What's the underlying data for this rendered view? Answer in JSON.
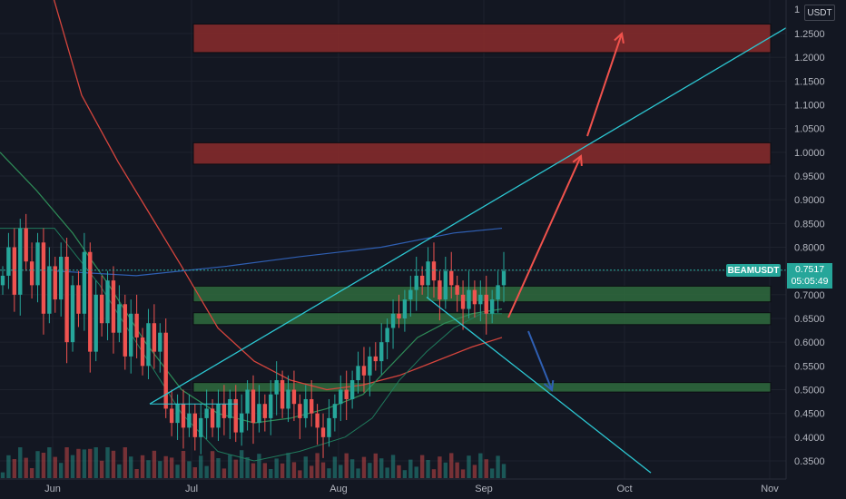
{
  "currency": "USDT",
  "ticker": "BEAMUSDT",
  "last_price": "0.7517",
  "countdown": "05:05:49",
  "colors": {
    "background": "#131722",
    "bull": "#26a69a",
    "bear": "#ef5350",
    "trendline": "#2cc7d2",
    "resistance_zone": "#8b2c2c",
    "support_zone": "#2f6b3d",
    "ma_fast": "#2e8b57",
    "ma_slow": "#d6453d",
    "ma_long": "#2f5fb3"
  },
  "chart_data": {
    "type": "candlestick",
    "y_ticks": [
      "1.2500",
      "1.2000",
      "1.1500",
      "1.1000",
      "1.0500",
      "1.0000",
      "0.9500",
      "0.9000",
      "0.8500",
      "0.8000",
      "0.7500",
      "0.7000",
      "0.6500",
      "0.6000",
      "0.5500",
      "0.5000",
      "0.4500",
      "0.4000",
      "0.3500"
    ],
    "y_top_label": "1",
    "x_ticks": [
      "Jun",
      "Jul",
      "Aug",
      "Sep",
      "Oct",
      "Nov"
    ],
    "ylim": [
      0.32,
      1.3
    ],
    "zones": [
      {
        "kind": "resistance",
        "low": 1.21,
        "high": 1.27
      },
      {
        "kind": "resistance",
        "low": 0.975,
        "high": 1.02
      },
      {
        "kind": "support",
        "low": 0.685,
        "high": 0.718
      },
      {
        "kind": "support",
        "low": 0.637,
        "high": 0.662
      },
      {
        "kind": "support",
        "low": 0.495,
        "high": 0.515
      }
    ],
    "candle_closes": [
      0.74,
      0.8,
      0.7,
      0.84,
      0.77,
      0.72,
      0.81,
      0.66,
      0.76,
      0.69,
      0.78,
      0.6,
      0.72,
      0.66,
      0.79,
      0.58,
      0.7,
      0.64,
      0.73,
      0.62,
      0.68,
      0.57,
      0.66,
      0.61,
      0.55,
      0.64,
      0.58,
      0.62,
      0.46,
      0.43,
      0.47,
      0.42,
      0.45,
      0.4,
      0.44,
      0.46,
      0.42,
      0.47,
      0.44,
      0.48,
      0.41,
      0.45,
      0.5,
      0.43,
      0.47,
      0.44,
      0.49,
      0.52,
      0.46,
      0.5,
      0.47,
      0.44,
      0.48,
      0.45,
      0.42,
      0.4,
      0.44,
      0.47,
      0.5,
      0.48,
      0.52,
      0.55,
      0.53,
      0.57,
      0.56,
      0.6,
      0.63,
      0.66,
      0.65,
      0.69,
      0.71,
      0.74,
      0.72,
      0.77,
      0.73,
      0.69,
      0.75,
      0.72,
      0.7,
      0.67,
      0.71,
      0.68,
      0.7,
      0.66,
      0.69,
      0.72,
      0.75
    ]
  }
}
